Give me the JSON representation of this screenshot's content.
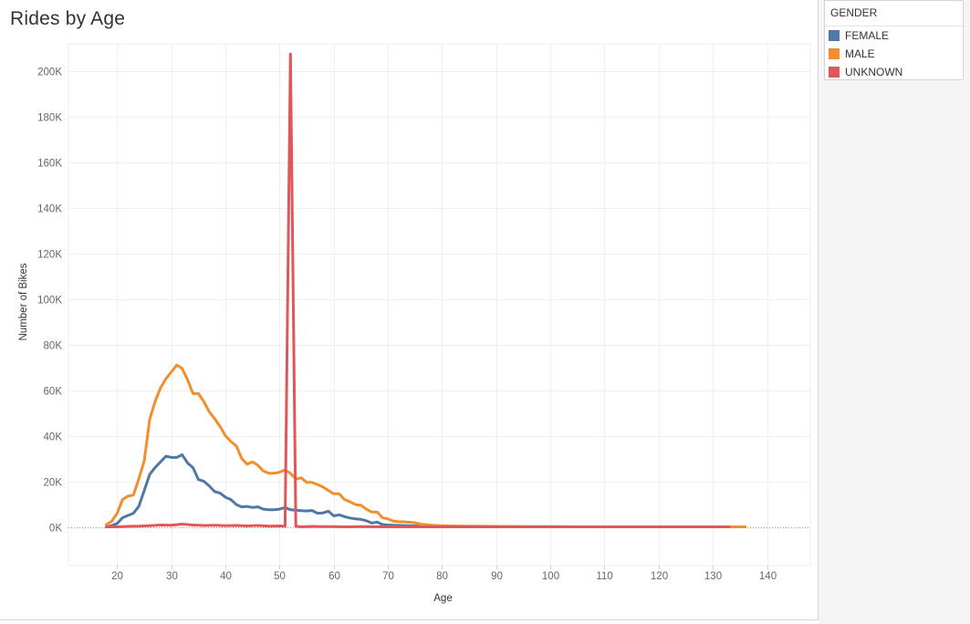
{
  "title": "Rides by Age",
  "legend": {
    "title": "GENDER",
    "items": [
      {
        "label": "FEMALE",
        "color": "#4e79a7"
      },
      {
        "label": "MALE",
        "color": "#f28e2b"
      },
      {
        "label": "UNKNOWN",
        "color": "#e15759"
      }
    ]
  },
  "chart_data": {
    "type": "line",
    "title": "Rides by Age",
    "xlabel": "Age",
    "ylabel": "Number of Bikes",
    "xlim": [
      11,
      148
    ],
    "ylim": [
      -17000,
      212000
    ],
    "x_ticks": [
      20,
      30,
      40,
      50,
      60,
      70,
      80,
      90,
      100,
      110,
      120,
      130,
      140
    ],
    "x_tick_labels": [
      "20",
      "30",
      "40",
      "50",
      "60",
      "70",
      "80",
      "90",
      "100",
      "110",
      "120",
      "130",
      "140"
    ],
    "y_ticks": [
      0,
      20000,
      40000,
      60000,
      80000,
      100000,
      120000,
      140000,
      160000,
      180000,
      200000
    ],
    "y_tick_labels": [
      "0K",
      "20K",
      "40K",
      "60K",
      "80K",
      "100K",
      "120K",
      "140K",
      "160K",
      "180K",
      "200K"
    ],
    "grid": true,
    "legend_position": "top-right",
    "series": [
      {
        "name": "FEMALE",
        "color": "#4e79a7",
        "x": [
          18,
          19,
          20,
          21,
          22,
          23,
          24,
          25,
          26,
          27,
          28,
          29,
          30,
          31,
          32,
          33,
          34,
          35,
          36,
          37,
          38,
          39,
          40,
          41,
          42,
          43,
          44,
          45,
          46,
          47,
          48,
          49,
          50,
          51,
          52,
          53,
          54,
          55,
          56,
          57,
          58,
          59,
          60,
          61,
          62,
          63,
          64,
          65,
          66,
          67,
          68,
          69,
          70,
          72,
          75,
          80,
          85,
          90,
          95,
          100,
          110,
          120,
          133
        ],
        "y": [
          0,
          500,
          1500,
          4000,
          5000,
          6000,
          9000,
          16000,
          23000,
          26000,
          28500,
          31000,
          30500,
          30500,
          31700,
          28000,
          26000,
          20800,
          20000,
          18000,
          15500,
          14800,
          13000,
          12000,
          9800,
          8800,
          9000,
          8500,
          8800,
          7800,
          7500,
          7500,
          7800,
          8500,
          7500,
          7300,
          7100,
          7000,
          7200,
          6000,
          6100,
          6900,
          4800,
          5300,
          4500,
          3900,
          3500,
          3300,
          2700,
          1700,
          2100,
          1000,
          800,
          600,
          400,
          250,
          150,
          100,
          50,
          50,
          30,
          20,
          0
        ]
      },
      {
        "name": "MALE",
        "color": "#f28e2b",
        "x": [
          18,
          19,
          20,
          21,
          22,
          23,
          24,
          25,
          26,
          27,
          28,
          29,
          30,
          31,
          32,
          33,
          34,
          35,
          36,
          37,
          38,
          39,
          40,
          41,
          42,
          43,
          44,
          45,
          46,
          47,
          48,
          49,
          50,
          51,
          52,
          53,
          54,
          55,
          56,
          57,
          58,
          59,
          60,
          61,
          62,
          63,
          64,
          65,
          66,
          67,
          68,
          69,
          70,
          71,
          72,
          73,
          74,
          75,
          76,
          78,
          80,
          85,
          90,
          95,
          100,
          110,
          120,
          130,
          136
        ],
        "y": [
          1000,
          2500,
          6000,
          12000,
          13500,
          14000,
          21000,
          29000,
          47000,
          55000,
          61000,
          65000,
          68000,
          71000,
          69500,
          64500,
          58500,
          58500,
          55000,
          50500,
          47500,
          44000,
          40000,
          37500,
          35500,
          30000,
          27500,
          28500,
          27000,
          24500,
          23500,
          23500,
          24000,
          25000,
          23500,
          21000,
          21500,
          19500,
          19500,
          18500,
          17500,
          16000,
          14500,
          14500,
          12000,
          11000,
          9800,
          9500,
          7800,
          6500,
          6500,
          4000,
          3500,
          2500,
          2200,
          2200,
          2000,
          1800,
          1200,
          700,
          500,
          300,
          200,
          100,
          50,
          30,
          20,
          10,
          0
        ]
      },
      {
        "name": "UNKNOWN",
        "color": "#e15759",
        "x": [
          18,
          20,
          22,
          24,
          26,
          28,
          30,
          32,
          34,
          36,
          38,
          40,
          42,
          44,
          46,
          48,
          50,
          51,
          52,
          53,
          54,
          56,
          58,
          60,
          62,
          65,
          70,
          80,
          90,
          100,
          120,
          133
        ],
        "y": [
          0,
          0,
          200,
          300,
          500,
          800,
          700,
          1200,
          800,
          600,
          700,
          500,
          600,
          400,
          600,
          300,
          400,
          300,
          207500,
          300,
          0,
          200,
          100,
          100,
          0,
          100,
          0,
          0,
          0,
          0,
          0,
          0
        ]
      }
    ]
  }
}
